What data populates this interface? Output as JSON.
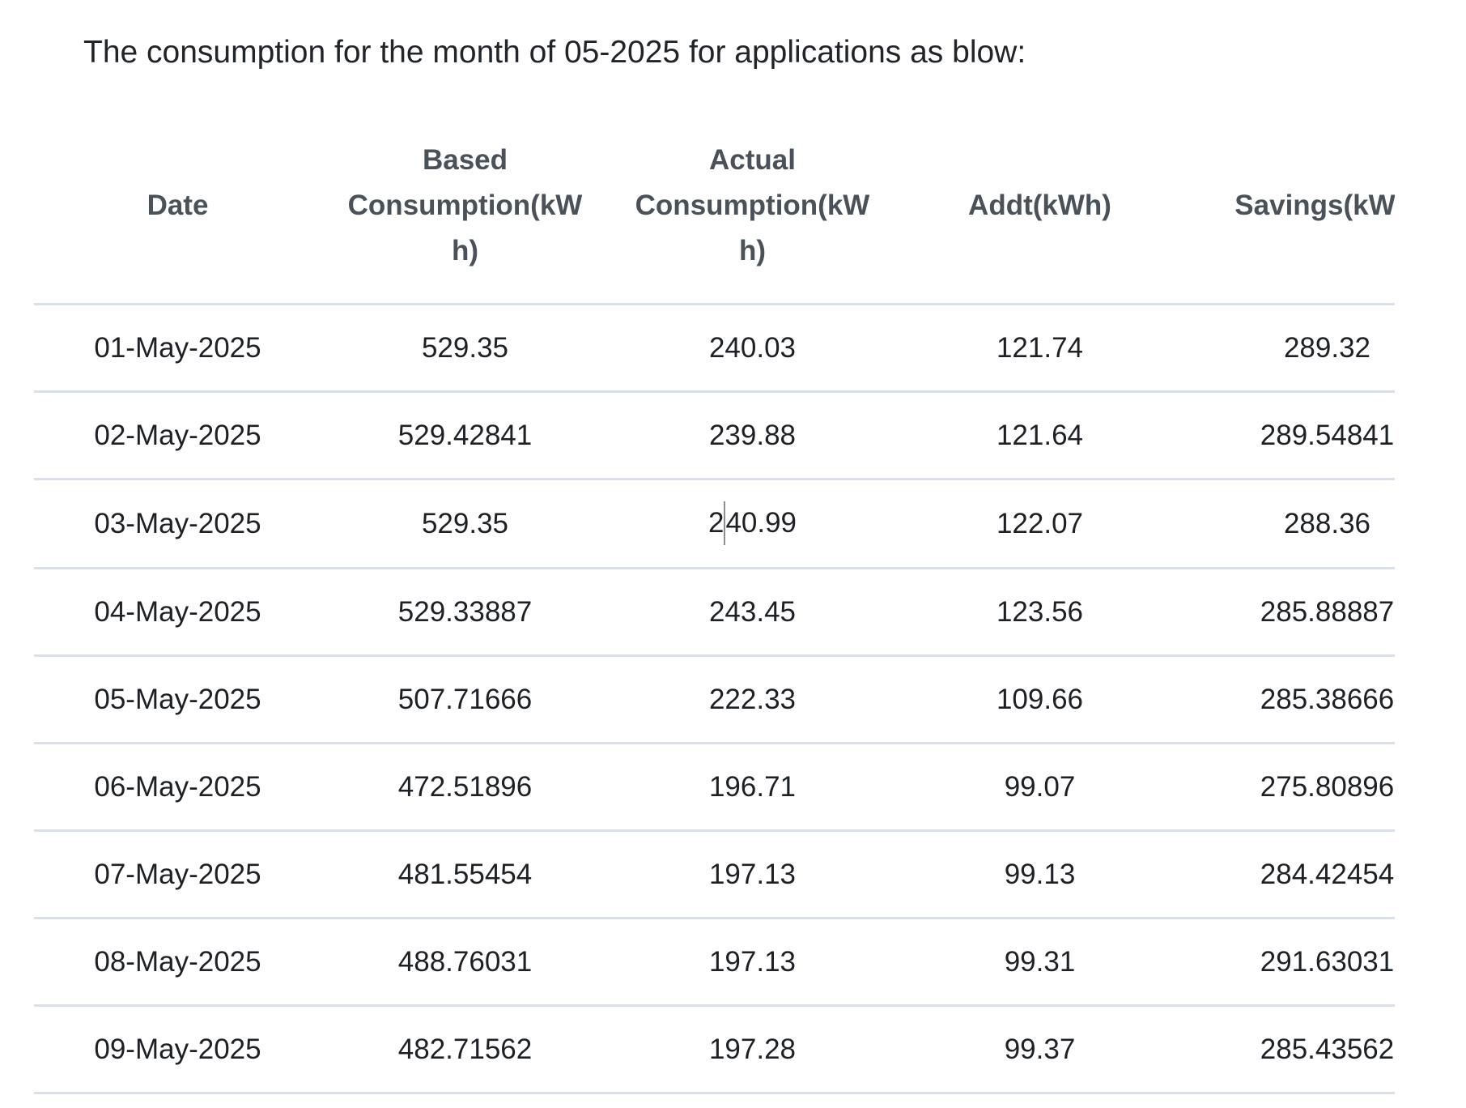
{
  "title": "The consumption for the month of 05-2025 for applications as blow:",
  "table": {
    "columns": [
      {
        "key": "date",
        "label_lines": [
          "Date"
        ]
      },
      {
        "key": "based",
        "label_lines": [
          "Based",
          "Consumption(kW",
          "h)"
        ]
      },
      {
        "key": "actual",
        "label_lines": [
          "Actual",
          "Consumption(kW",
          "h)"
        ]
      },
      {
        "key": "addt",
        "label_lines": [
          "Addt(kWh)"
        ]
      },
      {
        "key": "savings",
        "label_lines": [
          "Savings(kW"
        ]
      }
    ],
    "rows": [
      {
        "date": "01-May-2025",
        "based": "529.35",
        "actual": "240.03",
        "addt": "121.74",
        "savings": "289.32"
      },
      {
        "date": "02-May-2025",
        "based": "529.42841",
        "actual": "239.88",
        "addt": "121.64",
        "savings": "289.54841"
      },
      {
        "date": "03-May-2025",
        "based": "529.35",
        "actual": "240.99",
        "addt": "122.07",
        "savings": "288.36"
      },
      {
        "date": "04-May-2025",
        "based": "529.33887",
        "actual": "243.45",
        "addt": "123.56",
        "savings": "285.88887"
      },
      {
        "date": "05-May-2025",
        "based": "507.71666",
        "actual": "222.33",
        "addt": "109.66",
        "savings": "285.38666"
      },
      {
        "date": "06-May-2025",
        "based": "472.51896",
        "actual": "196.71",
        "addt": "99.07",
        "savings": "275.80896"
      },
      {
        "date": "07-May-2025",
        "based": "481.55454",
        "actual": "197.13",
        "addt": "99.13",
        "savings": "284.42454"
      },
      {
        "date": "08-May-2025",
        "based": "488.76031",
        "actual": "197.13",
        "addt": "99.31",
        "savings": "291.63031"
      },
      {
        "date": "09-May-2025",
        "based": "482.71562",
        "actual": "197.28",
        "addt": "99.37",
        "savings": "285.43562"
      }
    ]
  },
  "caret": {
    "row_index": 2,
    "column": "actual",
    "after_chars": 1
  },
  "colors": {
    "background": "#ffffff",
    "divider": "#dbe0e8",
    "header_text": "#4a5158",
    "body_text": "#1d2125",
    "caret": "#8e8e8e"
  }
}
